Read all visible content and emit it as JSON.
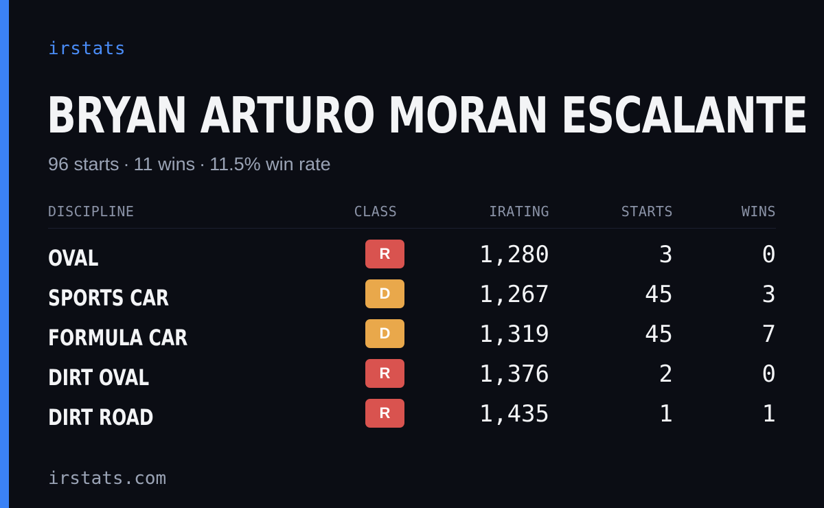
{
  "brand": "irstats",
  "player": {
    "name": "BRYAN ARTURO MORAN ESCALANTE",
    "starts": "96 starts",
    "wins": "11 wins",
    "win_rate": "11.5% win rate",
    "separator": "·"
  },
  "table": {
    "headers": {
      "discipline": "DISCIPLINE",
      "class": "CLASS",
      "irating": "IRATING",
      "starts": "STARTS",
      "wins": "WINS"
    },
    "rows": [
      {
        "discipline": "OVAL",
        "class": "R",
        "irating": "1,280",
        "starts": "3",
        "wins": "0"
      },
      {
        "discipline": "SPORTS CAR",
        "class": "D",
        "irating": "1,267",
        "starts": "45",
        "wins": "3"
      },
      {
        "discipline": "FORMULA CAR",
        "class": "D",
        "irating": "1,319",
        "starts": "45",
        "wins": "7"
      },
      {
        "discipline": "DIRT OVAL",
        "class": "R",
        "irating": "1,376",
        "starts": "2",
        "wins": "0"
      },
      {
        "discipline": "DIRT ROAD",
        "class": "R",
        "irating": "1,435",
        "starts": "1",
        "wins": "1"
      }
    ]
  },
  "footer": "irstats.com",
  "colors": {
    "background": "#0b0d14",
    "accent": "#3b82f6",
    "class_r": "#d9534f",
    "class_d": "#e9a84b"
  }
}
